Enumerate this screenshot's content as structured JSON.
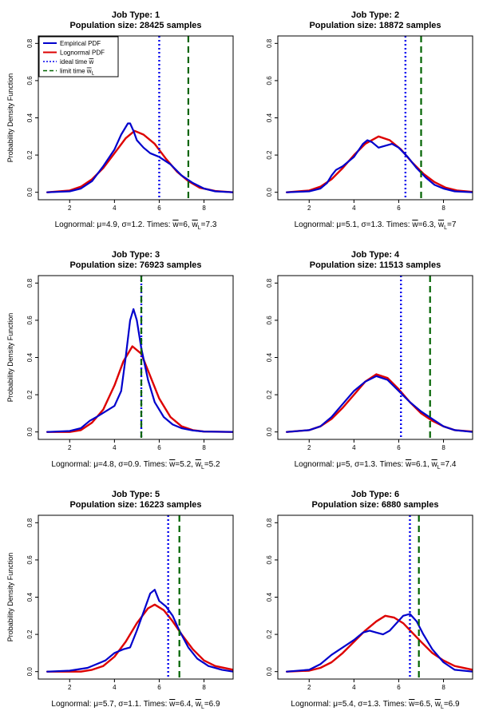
{
  "figure": {
    "ylabel": "Probability Density Function",
    "x_range": [
      0.6,
      9.3
    ],
    "y_range": [
      -0.04,
      0.84
    ],
    "x_ticks": [
      2,
      4,
      6,
      8
    ],
    "y_ticks": [
      0.0,
      0.2,
      0.4,
      0.6,
      0.8
    ],
    "colors": {
      "empirical": "#0000cc",
      "lognormal": "#dd0000",
      "ideal": "#0000ee",
      "limit": "#006400"
    }
  },
  "legend": {
    "empirical": "Empirical PDF",
    "lognormal": "Lognormal PDF",
    "ideal_prefix": "ideal time ",
    "ideal_symbol": "w",
    "limit_prefix": "limit time ",
    "limit_symbol": "w",
    "limit_sub": "L"
  },
  "chart_data": [
    {
      "type": "line",
      "title_line1": "Job Type:  1",
      "title_line2": "Population size: 28425 samples",
      "caption_prefix": "Lognormal: μ=4.9, σ=1.2. Times: ",
      "ideal_value_text": "=6, ",
      "limit_value_text": "=7.3",
      "mu": 4.9,
      "sigma": 1.2,
      "ideal_time": 6,
      "limit_time": 7.3,
      "series": [
        {
          "name": "Empirical PDF",
          "x": [
            1.0,
            2.0,
            2.5,
            3.0,
            3.5,
            4.0,
            4.3,
            4.6,
            4.7,
            4.85,
            5.0,
            5.3,
            5.6,
            6.0,
            6.5,
            7.0,
            7.5,
            8.0,
            8.5,
            9.3
          ],
          "y": [
            0.0,
            0.005,
            0.02,
            0.06,
            0.14,
            0.23,
            0.31,
            0.37,
            0.37,
            0.33,
            0.28,
            0.24,
            0.21,
            0.19,
            0.15,
            0.09,
            0.05,
            0.02,
            0.005,
            0.0
          ]
        },
        {
          "name": "Lognormal PDF",
          "x": [
            1.0,
            2.0,
            2.5,
            3.0,
            3.5,
            4.0,
            4.5,
            4.9,
            5.3,
            5.8,
            6.3,
            6.8,
            7.3,
            7.8,
            8.5,
            9.3
          ],
          "y": [
            0.0,
            0.01,
            0.03,
            0.07,
            0.13,
            0.21,
            0.29,
            0.33,
            0.31,
            0.26,
            0.18,
            0.11,
            0.06,
            0.025,
            0.007,
            0.0
          ]
        }
      ]
    },
    {
      "type": "line",
      "title_line1": "Job Type:  2",
      "title_line2": "Population size: 18872 samples",
      "caption_prefix": "Lognormal: μ=5.1, σ=1.3. Times: ",
      "ideal_value_text": "=6.3, ",
      "limit_value_text": "=7",
      "mu": 5.1,
      "sigma": 1.3,
      "ideal_time": 6.3,
      "limit_time": 7,
      "series": [
        {
          "name": "Empirical PDF",
          "x": [
            1.0,
            2.0,
            2.5,
            2.8,
            3.0,
            3.2,
            3.5,
            4.0,
            4.4,
            4.6,
            4.8,
            5.1,
            5.4,
            5.7,
            6.0,
            6.4,
            6.8,
            7.2,
            7.6,
            8.0,
            8.5,
            9.3
          ],
          "y": [
            0.0,
            0.005,
            0.02,
            0.05,
            0.09,
            0.12,
            0.14,
            0.19,
            0.26,
            0.28,
            0.27,
            0.24,
            0.25,
            0.26,
            0.24,
            0.19,
            0.13,
            0.08,
            0.04,
            0.02,
            0.005,
            0.0
          ]
        },
        {
          "name": "Lognormal PDF",
          "x": [
            1.0,
            2.0,
            2.5,
            3.0,
            3.5,
            4.0,
            4.5,
            5.1,
            5.6,
            6.1,
            6.6,
            7.1,
            7.6,
            8.1,
            8.6,
            9.3
          ],
          "y": [
            0.0,
            0.01,
            0.03,
            0.07,
            0.13,
            0.2,
            0.26,
            0.3,
            0.28,
            0.23,
            0.16,
            0.1,
            0.055,
            0.025,
            0.01,
            0.002
          ]
        }
      ]
    },
    {
      "type": "line",
      "title_line1": "Job Type:  3",
      "title_line2": "Population size: 76923 samples",
      "caption_prefix": "Lognormal: μ=4.8, σ=0.9. Times: ",
      "ideal_value_text": "=5.2, ",
      "limit_value_text": "=5.2",
      "mu": 4.8,
      "sigma": 0.9,
      "ideal_time": 5.2,
      "limit_time": 5.2,
      "series": [
        {
          "name": "Empirical PDF",
          "x": [
            1.0,
            2.0,
            2.5,
            2.9,
            3.2,
            3.6,
            4.0,
            4.3,
            4.5,
            4.7,
            4.85,
            5.0,
            5.2,
            5.5,
            5.8,
            6.2,
            6.6,
            7.0,
            7.5,
            8.0,
            9.3
          ],
          "y": [
            0.0,
            0.005,
            0.02,
            0.06,
            0.08,
            0.11,
            0.14,
            0.22,
            0.4,
            0.6,
            0.66,
            0.6,
            0.45,
            0.28,
            0.16,
            0.08,
            0.04,
            0.02,
            0.008,
            0.002,
            0.0
          ]
        },
        {
          "name": "Lognormal PDF",
          "x": [
            1.0,
            2.0,
            2.5,
            3.0,
            3.5,
            4.0,
            4.4,
            4.8,
            5.2,
            5.6,
            6.0,
            6.5,
            7.0,
            7.5,
            8.0,
            9.3
          ],
          "y": [
            0.0,
            0.0,
            0.01,
            0.05,
            0.12,
            0.25,
            0.38,
            0.46,
            0.42,
            0.3,
            0.18,
            0.08,
            0.03,
            0.01,
            0.002,
            0.0
          ]
        }
      ]
    },
    {
      "type": "line",
      "title_line1": "Job Type:  4",
      "title_line2": "Population size: 11513 samples",
      "caption_prefix": "Lognormal: μ=5, σ=1.3. Times: ",
      "ideal_value_text": "=6.1, ",
      "limit_value_text": "=7.4",
      "mu": 5,
      "sigma": 1.3,
      "ideal_time": 6.1,
      "limit_time": 7.4,
      "series": [
        {
          "name": "Empirical PDF",
          "x": [
            1.0,
            2.0,
            2.5,
            3.0,
            3.5,
            4.0,
            4.5,
            5.0,
            5.5,
            6.0,
            6.5,
            7.0,
            7.5,
            8.0,
            8.5,
            9.3
          ],
          "y": [
            0.0,
            0.01,
            0.03,
            0.08,
            0.15,
            0.22,
            0.27,
            0.3,
            0.28,
            0.22,
            0.16,
            0.11,
            0.07,
            0.03,
            0.01,
            0.0
          ]
        },
        {
          "name": "Lognormal PDF",
          "x": [
            1.0,
            2.0,
            2.5,
            3.0,
            3.5,
            4.0,
            4.5,
            5.0,
            5.5,
            6.0,
            6.5,
            7.0,
            7.5,
            8.0,
            8.5,
            9.3
          ],
          "y": [
            0.0,
            0.01,
            0.03,
            0.07,
            0.13,
            0.2,
            0.27,
            0.31,
            0.29,
            0.23,
            0.16,
            0.1,
            0.06,
            0.03,
            0.01,
            0.002
          ]
        }
      ]
    },
    {
      "type": "line",
      "title_line1": "Job Type:  5",
      "title_line2": "Population size: 16223 samples",
      "caption_prefix": "Lognormal: μ=5.7, σ=1.1. Times: ",
      "ideal_value_text": "=6.4, ",
      "limit_value_text": "=6.9",
      "mu": 5.7,
      "sigma": 1.1,
      "ideal_time": 6.4,
      "limit_time": 6.9,
      "series": [
        {
          "name": "Empirical PDF",
          "x": [
            1.0,
            2.0,
            2.8,
            3.2,
            3.6,
            4.0,
            4.4,
            4.7,
            5.0,
            5.3,
            5.6,
            5.8,
            6.0,
            6.3,
            6.6,
            6.9,
            7.3,
            7.7,
            8.2,
            8.8,
            9.3
          ],
          "y": [
            0.0,
            0.005,
            0.02,
            0.04,
            0.06,
            0.1,
            0.12,
            0.13,
            0.22,
            0.32,
            0.42,
            0.44,
            0.38,
            0.35,
            0.3,
            0.22,
            0.13,
            0.07,
            0.03,
            0.01,
            0.0
          ]
        },
        {
          "name": "Lognormal PDF",
          "x": [
            1.0,
            2.0,
            2.5,
            3.0,
            3.5,
            4.0,
            4.5,
            5.0,
            5.5,
            5.8,
            6.2,
            6.6,
            7.0,
            7.5,
            8.0,
            8.5,
            9.3
          ],
          "y": [
            0.0,
            0.0,
            0.0,
            0.01,
            0.03,
            0.08,
            0.16,
            0.26,
            0.34,
            0.36,
            0.33,
            0.27,
            0.2,
            0.12,
            0.06,
            0.03,
            0.01
          ]
        }
      ]
    },
    {
      "type": "line",
      "title_line1": "Job Type:  6",
      "title_line2": "Population size: 6880 samples",
      "caption_prefix": "Lognormal: μ=5.4, σ=1.3. Times: ",
      "ideal_value_text": "=6.5, ",
      "limit_value_text": "=6.9",
      "mu": 5.4,
      "sigma": 1.3,
      "ideal_time": 6.5,
      "limit_time": 6.9,
      "series": [
        {
          "name": "Empirical PDF",
          "x": [
            1.0,
            2.0,
            2.5,
            3.0,
            3.5,
            4.0,
            4.4,
            4.7,
            5.0,
            5.3,
            5.6,
            5.9,
            6.2,
            6.5,
            6.8,
            7.1,
            7.5,
            8.0,
            8.5,
            9.3
          ],
          "y": [
            0.0,
            0.01,
            0.04,
            0.09,
            0.13,
            0.17,
            0.21,
            0.22,
            0.21,
            0.2,
            0.22,
            0.26,
            0.3,
            0.31,
            0.27,
            0.2,
            0.12,
            0.05,
            0.01,
            0.0
          ]
        },
        {
          "name": "Lognormal PDF",
          "x": [
            1.0,
            2.0,
            2.5,
            3.0,
            3.5,
            4.0,
            4.5,
            5.0,
            5.4,
            5.8,
            6.2,
            6.6,
            7.0,
            7.5,
            8.0,
            8.5,
            9.3
          ],
          "y": [
            0.0,
            0.005,
            0.02,
            0.05,
            0.1,
            0.16,
            0.22,
            0.27,
            0.3,
            0.29,
            0.26,
            0.21,
            0.16,
            0.1,
            0.06,
            0.03,
            0.01
          ]
        }
      ]
    }
  ]
}
